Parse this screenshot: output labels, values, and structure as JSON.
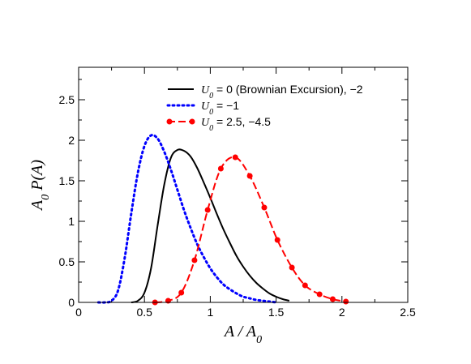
{
  "chart_data": {
    "type": "line",
    "title": "",
    "xlabel": "A / A",
    "xlabel_sub": "0",
    "ylabel": "A",
    "ylabel_sub": "0",
    "ylabel_rest": " P(A)",
    "xlim": [
      0,
      2.5
    ],
    "ylim": [
      0,
      2.9
    ],
    "xticks": [
      "0",
      "0.5",
      "1",
      "1.5",
      "2",
      "2.5"
    ],
    "yticks": [
      "0",
      "0.5",
      "1",
      "1.5",
      "2",
      "2.5"
    ],
    "grid": false,
    "legend_position": "top-right",
    "series": [
      {
        "name": "U_0 = 0 (Brownian Excursion), −2",
        "legend_main": "U",
        "legend_sub": "0",
        "legend_rest": " = 0 (Brownian Excursion), −2",
        "color": "#000000",
        "style": "solid",
        "x": [
          0.4,
          0.45,
          0.5,
          0.55,
          0.6,
          0.65,
          0.7,
          0.75,
          0.8,
          0.85,
          0.9,
          0.95,
          1.0,
          1.05,
          1.1,
          1.15,
          1.2,
          1.25,
          1.3,
          1.35,
          1.4,
          1.45,
          1.5,
          1.55,
          1.6
        ],
        "y": [
          0.0,
          0.02,
          0.12,
          0.42,
          0.95,
          1.45,
          1.78,
          1.88,
          1.87,
          1.8,
          1.66,
          1.48,
          1.29,
          1.09,
          0.9,
          0.73,
          0.57,
          0.44,
          0.33,
          0.24,
          0.17,
          0.11,
          0.07,
          0.04,
          0.02
        ]
      },
      {
        "name": "U_0 = −1",
        "legend_main": "U",
        "legend_sub": "0",
        "legend_rest": " = −1",
        "color": "#0000ff",
        "style": "dotted",
        "x": [
          0.15,
          0.2,
          0.25,
          0.3,
          0.35,
          0.4,
          0.45,
          0.5,
          0.55,
          0.6,
          0.65,
          0.7,
          0.75,
          0.8,
          0.85,
          0.9,
          0.95,
          1.0,
          1.05,
          1.1,
          1.15,
          1.2,
          1.25,
          1.3,
          1.35,
          1.4,
          1.45,
          1.5
        ],
        "y": [
          0.0,
          0.0,
          0.02,
          0.15,
          0.55,
          1.1,
          1.6,
          1.93,
          2.06,
          2.02,
          1.86,
          1.64,
          1.39,
          1.14,
          0.92,
          0.72,
          0.56,
          0.42,
          0.31,
          0.22,
          0.16,
          0.11,
          0.07,
          0.05,
          0.03,
          0.02,
          0.01,
          0.0
        ]
      },
      {
        "name": "U_0 = 2.5, −4.5",
        "legend_main": "U",
        "legend_sub": "0",
        "legend_rest": " = 2.5, −4.5",
        "color": "#ff0000",
        "style": "dashed",
        "markers": true,
        "x": [
          0.58,
          0.68,
          0.78,
          0.88,
          0.98,
          1.08,
          1.19,
          1.3,
          1.41,
          1.51,
          1.62,
          1.72,
          1.83,
          1.93,
          2.03
        ],
        "y": [
          0.0,
          0.02,
          0.12,
          0.52,
          1.14,
          1.65,
          1.79,
          1.56,
          1.17,
          0.77,
          0.43,
          0.21,
          0.1,
          0.04,
          0.01
        ]
      }
    ]
  }
}
